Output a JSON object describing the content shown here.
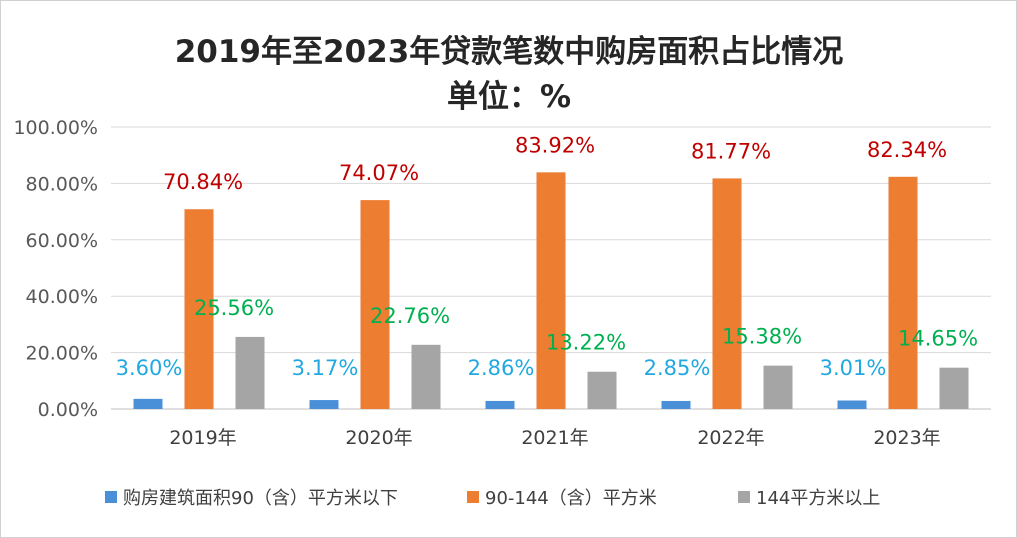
{
  "chart_data": {
    "type": "bar",
    "title": "2019年至2023年贷款笔数中购房面积占比情况",
    "subtitle": "单位：%",
    "categories": [
      "2019年",
      "2020年",
      "2021年",
      "2022年",
      "2023年"
    ],
    "ylim": [
      0,
      100
    ],
    "yticks": [
      "0.00%",
      "20.00%",
      "40.00%",
      "60.00%",
      "80.00%",
      "100.00%"
    ],
    "ytick_values": [
      0,
      20,
      40,
      60,
      80,
      100
    ],
    "grid": true,
    "legend_position": "bottom",
    "series": [
      {
        "name": "购房建筑面积90（含）平方米以下",
        "color": "#4a90d9",
        "label_color": "#22a8e0",
        "values": [
          3.6,
          3.17,
          2.86,
          2.85,
          3.01
        ],
        "labels": [
          "3.60%",
          "3.17%",
          "2.86%",
          "2.85%",
          "3.01%"
        ]
      },
      {
        "name": "90-144（含）平方米",
        "color": "#ed7d31",
        "label_color": "#c00000",
        "values": [
          70.84,
          74.07,
          83.92,
          81.77,
          82.34
        ],
        "labels": [
          "70.84%",
          "74.07%",
          "83.92%",
          "81.77%",
          "82.34%"
        ]
      },
      {
        "name": "144平方米以上",
        "color": "#a5a5a5",
        "label_color": "#00b050",
        "values": [
          25.56,
          22.76,
          13.22,
          15.38,
          14.65
        ],
        "labels": [
          "25.56%",
          "22.76%",
          "13.22%",
          "15.38%",
          "14.65%"
        ]
      }
    ]
  }
}
